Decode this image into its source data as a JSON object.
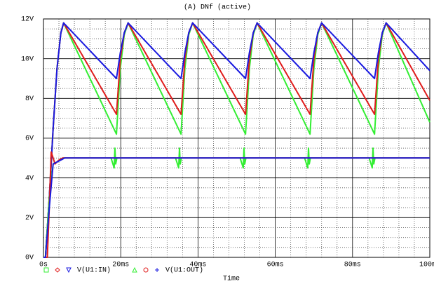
{
  "chart_data": {
    "type": "line",
    "title": "(A) DNf (active)",
    "x_label": "Time",
    "xlim": [
      0,
      100
    ],
    "xticks": [
      {
        "value": 0,
        "label": "0s"
      },
      {
        "value": 20,
        "label": "20ms"
      },
      {
        "value": 40,
        "label": "40ms"
      },
      {
        "value": 60,
        "label": "60ms"
      },
      {
        "value": 80,
        "label": "80ms"
      },
      {
        "value": 100,
        "label": "100ms"
      }
    ],
    "ylim": [
      0,
      12
    ],
    "yticks": [
      {
        "value": 0,
        "label": "0V"
      },
      {
        "value": 2,
        "label": "2V"
      },
      {
        "value": 4,
        "label": "4V"
      },
      {
        "value": 6,
        "label": "6V"
      },
      {
        "value": 8,
        "label": "8V"
      },
      {
        "value": 10,
        "label": "10V"
      },
      {
        "value": 12,
        "label": "12V"
      }
    ],
    "grid": true,
    "series": [
      {
        "name": "V(U1:IN)",
        "color": "#33ee33",
        "marker": "square",
        "x": [
          0,
          0.5,
          1.5,
          2.5,
          3.5,
          4.5,
          5.2,
          18.9,
          19.9,
          20.9,
          21.9,
          35.6,
          36.6,
          37.6,
          38.6,
          52.3,
          53.3,
          54.3,
          55.3,
          69,
          70,
          71,
          72,
          85.7,
          86.7,
          87.7,
          88.7,
          100
        ],
        "values": [
          0,
          0,
          3,
          6.5,
          9.5,
          11.3,
          11.8,
          6.2,
          9.5,
          11.2,
          11.8,
          6.2,
          9.5,
          11.2,
          11.8,
          6.2,
          9.5,
          11.2,
          11.8,
          6.2,
          9.5,
          11.2,
          11.8,
          6.2,
          9.5,
          11.2,
          11.8,
          6.8
        ]
      },
      {
        "name": "V(U1:IN)",
        "color": "#e01c1c",
        "marker": "diamond",
        "x": [
          0,
          0.5,
          1.5,
          2.5,
          3.5,
          4.5,
          5.2,
          18.9,
          19.9,
          20.9,
          21.9,
          35.6,
          36.6,
          37.6,
          38.6,
          52.3,
          53.3,
          54.3,
          55.3,
          69,
          70,
          71,
          72,
          85.7,
          86.7,
          87.7,
          88.7,
          100
        ],
        "values": [
          0,
          0,
          3,
          6.5,
          9.5,
          11.3,
          11.8,
          7.2,
          10,
          11.3,
          11.8,
          7.2,
          10,
          11.3,
          11.8,
          7.2,
          10,
          11.3,
          11.8,
          7.2,
          10,
          11.3,
          11.8,
          7.2,
          10,
          11.3,
          11.8,
          7.9
        ]
      },
      {
        "name": "V(U1:IN)",
        "color": "#1a1ae0",
        "marker": "triangle-down",
        "x": [
          0,
          0.5,
          1.5,
          2.5,
          3.5,
          4.5,
          5.2,
          18.9,
          19.9,
          20.9,
          21.9,
          35.6,
          36.6,
          37.6,
          38.6,
          52.3,
          53.3,
          54.3,
          55.3,
          69,
          70,
          71,
          72,
          85.7,
          86.7,
          87.7,
          88.7,
          100
        ],
        "values": [
          0,
          0,
          3,
          6.5,
          9.5,
          11.3,
          11.8,
          9,
          10.3,
          11.3,
          11.8,
          9,
          10.3,
          11.3,
          11.8,
          9,
          10.3,
          11.3,
          11.8,
          9,
          10.3,
          11.3,
          11.8,
          9,
          10.3,
          11.3,
          11.8,
          9.4
        ]
      },
      {
        "name": "V(U1:OUT)",
        "color": "#33ee33",
        "marker": "triangle-up",
        "x": [
          0,
          0.5,
          1.5,
          2.5,
          3.5,
          5,
          17.5,
          18.3,
          18.5,
          18.7,
          19,
          34.2,
          35,
          35.2,
          35.4,
          35.7,
          50.9,
          51.7,
          51.9,
          52.1,
          52.4,
          67.6,
          68.4,
          68.6,
          68.8,
          69.1,
          84.3,
          85.1,
          85.3,
          85.5,
          85.8,
          100
        ],
        "values": [
          0,
          0,
          3,
          4.7,
          4.8,
          5,
          5,
          4.5,
          5.5,
          4.7,
          5,
          5,
          4.5,
          5.5,
          4.7,
          5,
          5,
          4.5,
          5.5,
          4.7,
          5,
          5,
          4.5,
          5.5,
          4.7,
          5,
          5,
          4.5,
          5.5,
          4.7,
          5,
          5
        ]
      },
      {
        "name": "V(U1:OUT)",
        "color": "#e01c1c",
        "marker": "circle",
        "x": [
          0,
          1,
          1.5,
          2,
          2.5,
          3,
          4,
          5,
          100
        ],
        "values": [
          0,
          0,
          2.5,
          5.3,
          5,
          4.7,
          4.9,
          5,
          5
        ]
      },
      {
        "name": "V(U1:OUT)",
        "color": "#1a1ae0",
        "marker": "plus",
        "x": [
          0,
          0.5,
          1.5,
          2.5,
          3.5,
          4.5,
          5.5,
          100
        ],
        "values": [
          0,
          0,
          2.5,
          4.7,
          4.8,
          4.9,
          5,
          5
        ]
      }
    ]
  }
}
